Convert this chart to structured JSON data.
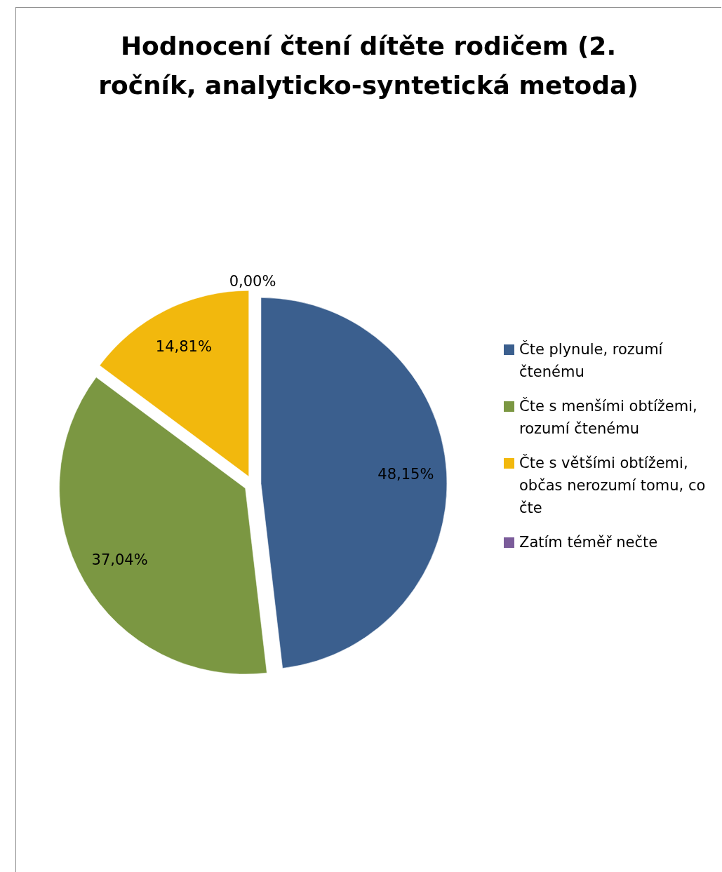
{
  "chart_data": {
    "type": "pie",
    "title": "Hodnocení čtení dítěte rodičem (2. ročník, analyticko-syntetická metoda)",
    "categories": [
      "Čte plynule, rozumí čtenému",
      "Čte s menšími obtížemi, rozumí čtenému",
      "Čte s většími obtížemi, občas nerozumí tomu, co čte",
      "Zatím téměř nečte"
    ],
    "values": [
      48.15,
      37.04,
      14.81,
      0
    ],
    "colors": [
      "#3b5f8e",
      "#7b9742",
      "#f2b80d",
      "#7b5c9a"
    ],
    "value_labels": [
      "48,15%",
      "37,04%",
      "14,81%",
      "0,00%"
    ],
    "legend": "right"
  }
}
